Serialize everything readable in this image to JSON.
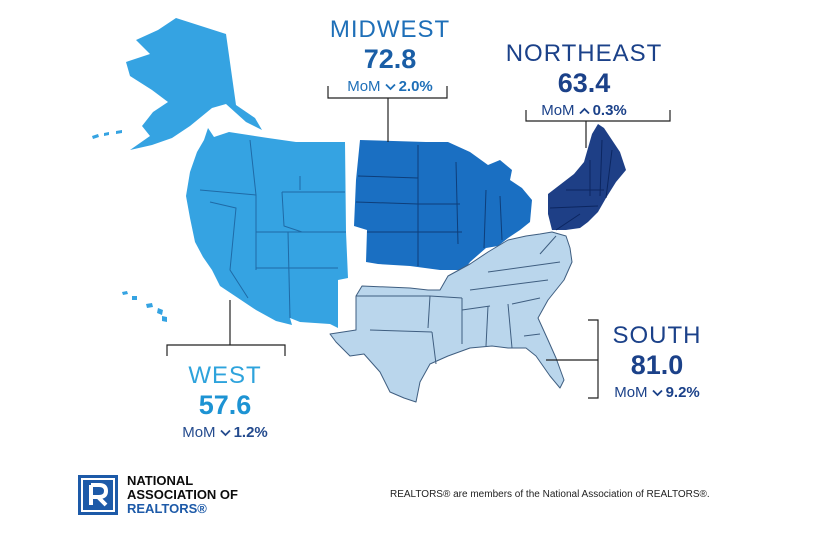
{
  "regions": {
    "midwest": {
      "name": "MIDWEST",
      "value": "72.8",
      "mom_label": "MoM",
      "direction": "down",
      "change": "2.0%",
      "color": "#1a6fc2"
    },
    "northeast": {
      "name": "NORTHEAST",
      "value": "63.4",
      "mom_label": "MoM",
      "direction": "up",
      "change": "0.3%",
      "color": "#1e3f86"
    },
    "west": {
      "name": "WEST",
      "value": "57.6",
      "mom_label": "MoM",
      "direction": "down",
      "change": "1.2%",
      "color": "#35a3e2"
    },
    "south": {
      "name": "SOUTH",
      "value": "81.0",
      "mom_label": "MoM",
      "direction": "down",
      "change": "9.2%",
      "color": "#bad6ec"
    }
  },
  "logo": {
    "line1": "NATIONAL",
    "line2": "ASSOCIATION OF",
    "line3": "REALTORS®",
    "brand_color": "#1d5aa8"
  },
  "footer_note": "REALTORS® are members of the National Association of REALTORS®."
}
